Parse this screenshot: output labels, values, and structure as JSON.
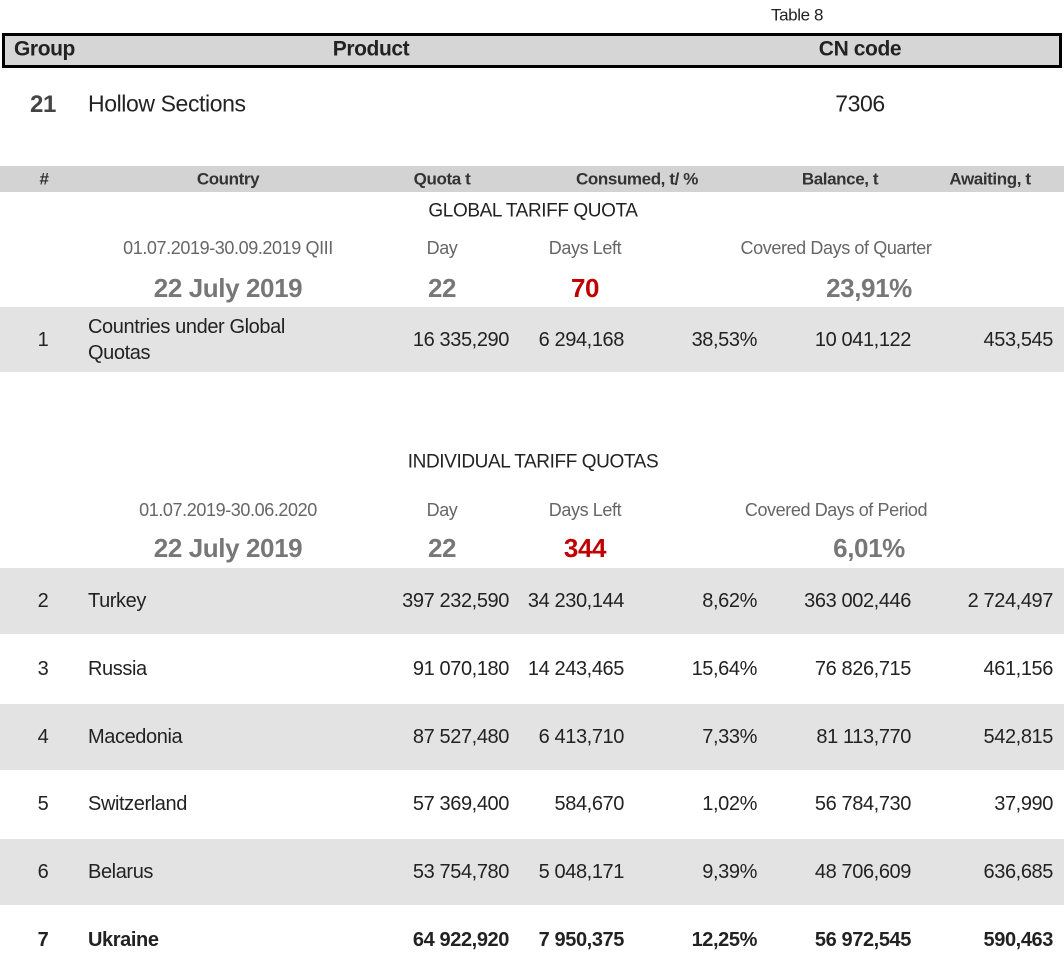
{
  "table_label": "Table 8",
  "header": {
    "group": "Group",
    "product": "Product",
    "cn_code": "CN code"
  },
  "product_row": {
    "group": "21",
    "product": "Hollow Sections",
    "cn_code": "7306"
  },
  "columns": [
    "#",
    "Country",
    "Quota t",
    "Consumed, t/ %",
    "Balance, t",
    "Awaiting, t"
  ],
  "global": {
    "title": "GLOBAL TARIFF QUOTA",
    "period": "01.07.2019-30.09.2019  QIII",
    "day_label": "Day",
    "days_left_label": "Days Left",
    "covered_label": "Covered Days of Quarter",
    "date": "22 July 2019",
    "day": "22",
    "days_left": "70",
    "covered": "23,91%",
    "rows": [
      [
        "1",
        "Countries under Global Quotas",
        "16 335,290",
        "6 294,168",
        "38,53%",
        "10 041,122",
        "453,545"
      ]
    ]
  },
  "individual": {
    "title": "INDIVIDUAL TARIFF QUOTAS",
    "period": "01.07.2019-30.06.2020",
    "day_label": "Day",
    "days_left_label": "Days Left",
    "covered_label": "Covered Days of Period",
    "date": "22 July 2019",
    "day": "22",
    "days_left": "344",
    "covered": "6,01%",
    "rows": [
      [
        "2",
        "Turkey",
        "397 232,590",
        "34 230,144",
        "8,62%",
        "363 002,446",
        "2 724,497"
      ],
      [
        "3",
        "Russia",
        "91 070,180",
        "14 243,465",
        "15,64%",
        "76 826,715",
        "461,156"
      ],
      [
        "4",
        "Macedonia",
        "87 527,480",
        "6 413,710",
        "7,33%",
        "81 113,770",
        "542,815"
      ],
      [
        "5",
        "Switzerland",
        "57 369,400",
        "584,670",
        "1,02%",
        "56 784,730",
        "37,990"
      ],
      [
        "6",
        "Belarus",
        "53 754,780",
        "5 048,171",
        "9,39%",
        "48 706,609",
        "636,685"
      ],
      [
        "7",
        "Ukraine",
        "64 922,920",
        "7 950,375",
        "12,25%",
        "56 972,545",
        "590,463"
      ]
    ]
  }
}
